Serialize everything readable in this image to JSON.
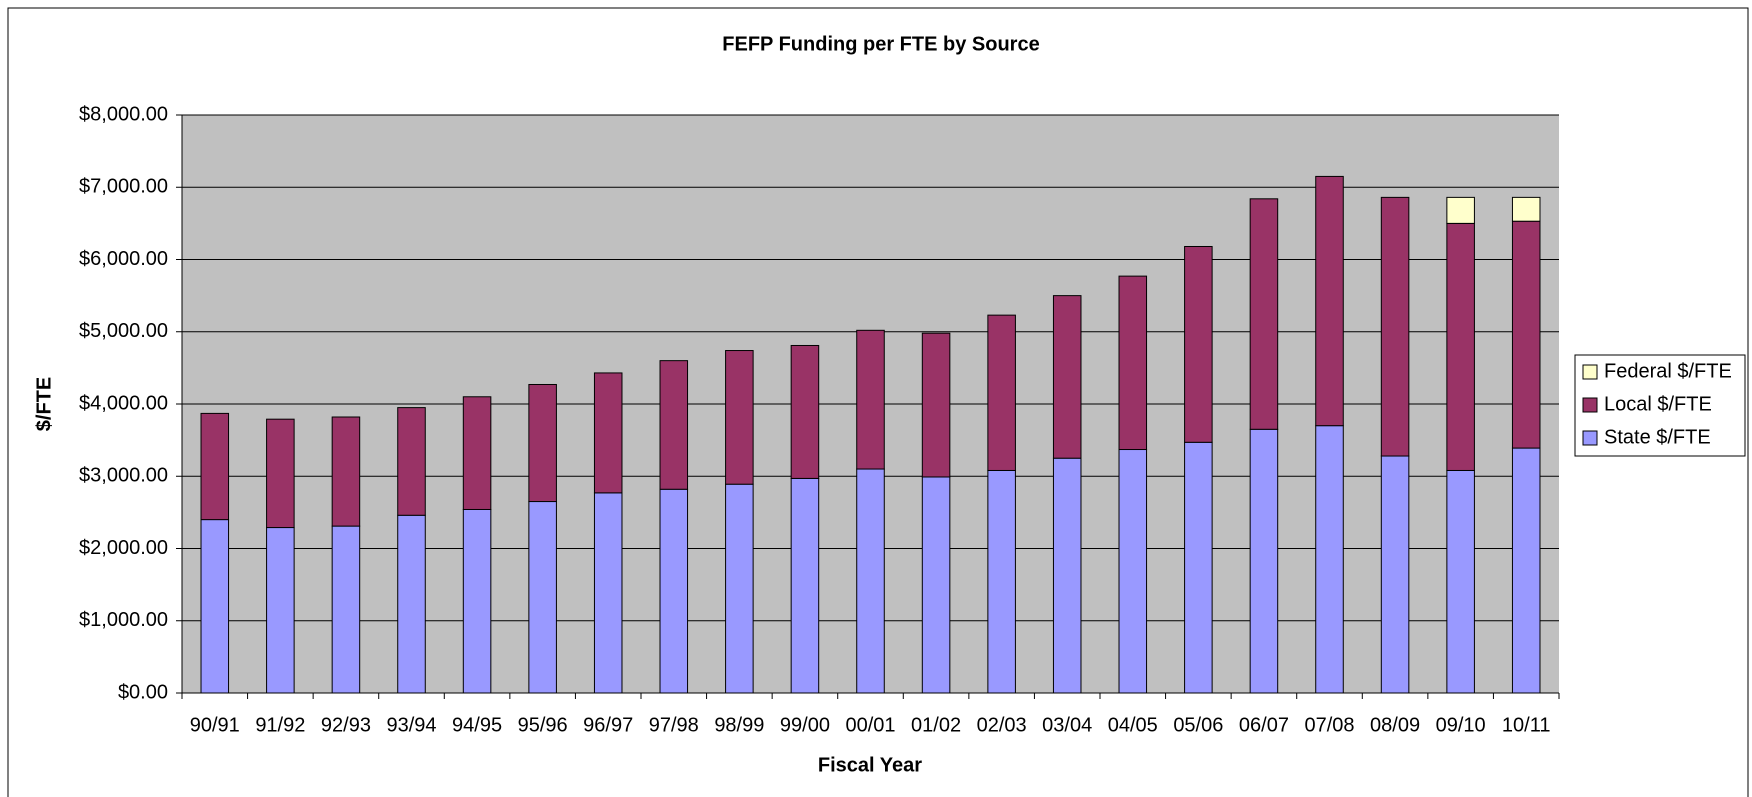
{
  "chart_data": {
    "type": "stacked_bar",
    "title": "FEFP Funding per FTE by Source",
    "x_label": "Fiscal Year",
    "y_label": "$/FTE",
    "categories": [
      "90/91",
      "91/92",
      "92/93",
      "93/94",
      "94/95",
      "95/96",
      "96/97",
      "97/98",
      "98/99",
      "99/00",
      "00/01",
      "01/02",
      "02/03",
      "03/04",
      "04/05",
      "05/06",
      "06/07",
      "07/08",
      "08/09",
      "09/10",
      "10/11"
    ],
    "series": [
      {
        "name": "State $/FTE",
        "color": "#9999ff",
        "values": [
          2400,
          2290,
          2310,
          2460,
          2540,
          2650,
          2770,
          2820,
          2890,
          2970,
          3100,
          2990,
          3080,
          3250,
          3370,
          3470,
          3650,
          3700,
          3280,
          3080,
          3390
        ]
      },
      {
        "name": "Local $/FTE",
        "color": "#993366",
        "values": [
          1470,
          1500,
          1510,
          1490,
          1560,
          1620,
          1660,
          1780,
          1850,
          1840,
          1920,
          1990,
          2150,
          2250,
          2400,
          2710,
          3190,
          3450,
          3580,
          3420,
          3140
        ]
      },
      {
        "name": "Federal $/FTE",
        "color": "#ffffcc",
        "values": [
          0,
          0,
          0,
          0,
          0,
          0,
          0,
          0,
          0,
          0,
          0,
          0,
          0,
          0,
          0,
          0,
          0,
          0,
          0,
          360,
          330
        ]
      }
    ],
    "ylim": [
      0,
      8000
    ],
    "yticks": [
      {
        "value": 0,
        "label": "$0.00"
      },
      {
        "value": 1000,
        "label": "$1,000.00"
      },
      {
        "value": 2000,
        "label": "$2,000.00"
      },
      {
        "value": 3000,
        "label": "$3,000.00"
      },
      {
        "value": 4000,
        "label": "$4,000.00"
      },
      {
        "value": 5000,
        "label": "$5,000.00"
      },
      {
        "value": 6000,
        "label": "$6,000.00"
      },
      {
        "value": 7000,
        "label": "$7,000.00"
      },
      {
        "value": 8000,
        "label": "$8,000.00"
      }
    ],
    "grid": true,
    "legend": "right"
  }
}
